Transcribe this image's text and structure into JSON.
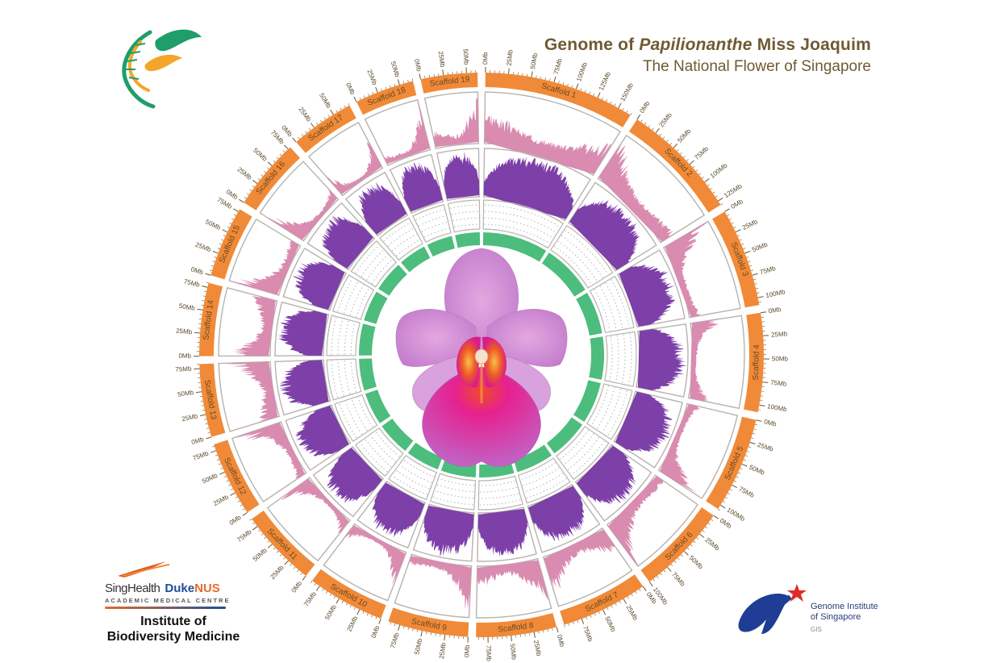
{
  "header": {
    "title_prefix": "Genome of ",
    "title_italic": "Papilionanthe",
    "title_suffix": " Miss Joaquim",
    "subtitle": "The National Flower of Singapore"
  },
  "logos": {
    "top_left": "dna-leaf-logo",
    "singhealth": "SingHealth",
    "duke": "Duke",
    "nus": "NUS",
    "amc": "ACADEMIC MEDICAL CENTRE",
    "institute_line1": "Institute of",
    "institute_line2": "Biodiversity Medicine",
    "gis_line1": "Genome Institute",
    "gis_line2": "of Singapore",
    "gis_abbr": "GIS"
  },
  "colors": {
    "scaffold": "#f08a38",
    "tick_text": "#5a4a2a",
    "track_outline": "#b7b3ad",
    "density_pink": "#d98bb0",
    "density_purple": "#7d3fa8",
    "inner_green": "#4cbd7c",
    "dotted_grid": "#aab3bd"
  },
  "chart_data": {
    "type": "circos",
    "title": "Genome of Papilionanthe Miss Joaquim",
    "unit": "Mb",
    "tick_interval_mb": 25,
    "scaffolds": [
      {
        "name": "Scaffold 1",
        "length_mb": 165
      },
      {
        "name": "Scaffold 2",
        "length_mb": 130
      },
      {
        "name": "Scaffold 3",
        "length_mb": 108
      },
      {
        "name": "Scaffold 4",
        "length_mb": 108
      },
      {
        "name": "Scaffold 5",
        "length_mb": 105
      },
      {
        "name": "Scaffold 6",
        "length_mb": 100
      },
      {
        "name": "Scaffold 7",
        "length_mb": 95
      },
      {
        "name": "Scaffold 8",
        "length_mb": 88
      },
      {
        "name": "Scaffold 9",
        "length_mb": 88
      },
      {
        "name": "Scaffold 10",
        "length_mb": 85
      },
      {
        "name": "Scaffold 11",
        "length_mb": 85
      },
      {
        "name": "Scaffold 12",
        "length_mb": 82
      },
      {
        "name": "Scaffold 13",
        "length_mb": 80
      },
      {
        "name": "Scaffold 14",
        "length_mb": 80
      },
      {
        "name": "Scaffold 15",
        "length_mb": 78
      },
      {
        "name": "Scaffold 16",
        "length_mb": 78
      },
      {
        "name": "Scaffold 17",
        "length_mb": 70
      },
      {
        "name": "Scaffold 18",
        "length_mb": 65
      },
      {
        "name": "Scaffold 19",
        "length_mb": 62
      }
    ],
    "tracks": [
      {
        "name": "pink density",
        "type": "histogram",
        "relative_profile": "peaks near scaffold ends, sparse centers"
      },
      {
        "name": "purple density",
        "type": "histogram",
        "relative_profile": "high throughout, peaks centers"
      },
      {
        "name": "dotted scatter",
        "type": "scatter"
      },
      {
        "name": "green band",
        "type": "solid-ideogram"
      }
    ],
    "center_image": "Papilionanthe Miss Joaquim orchid flower"
  }
}
